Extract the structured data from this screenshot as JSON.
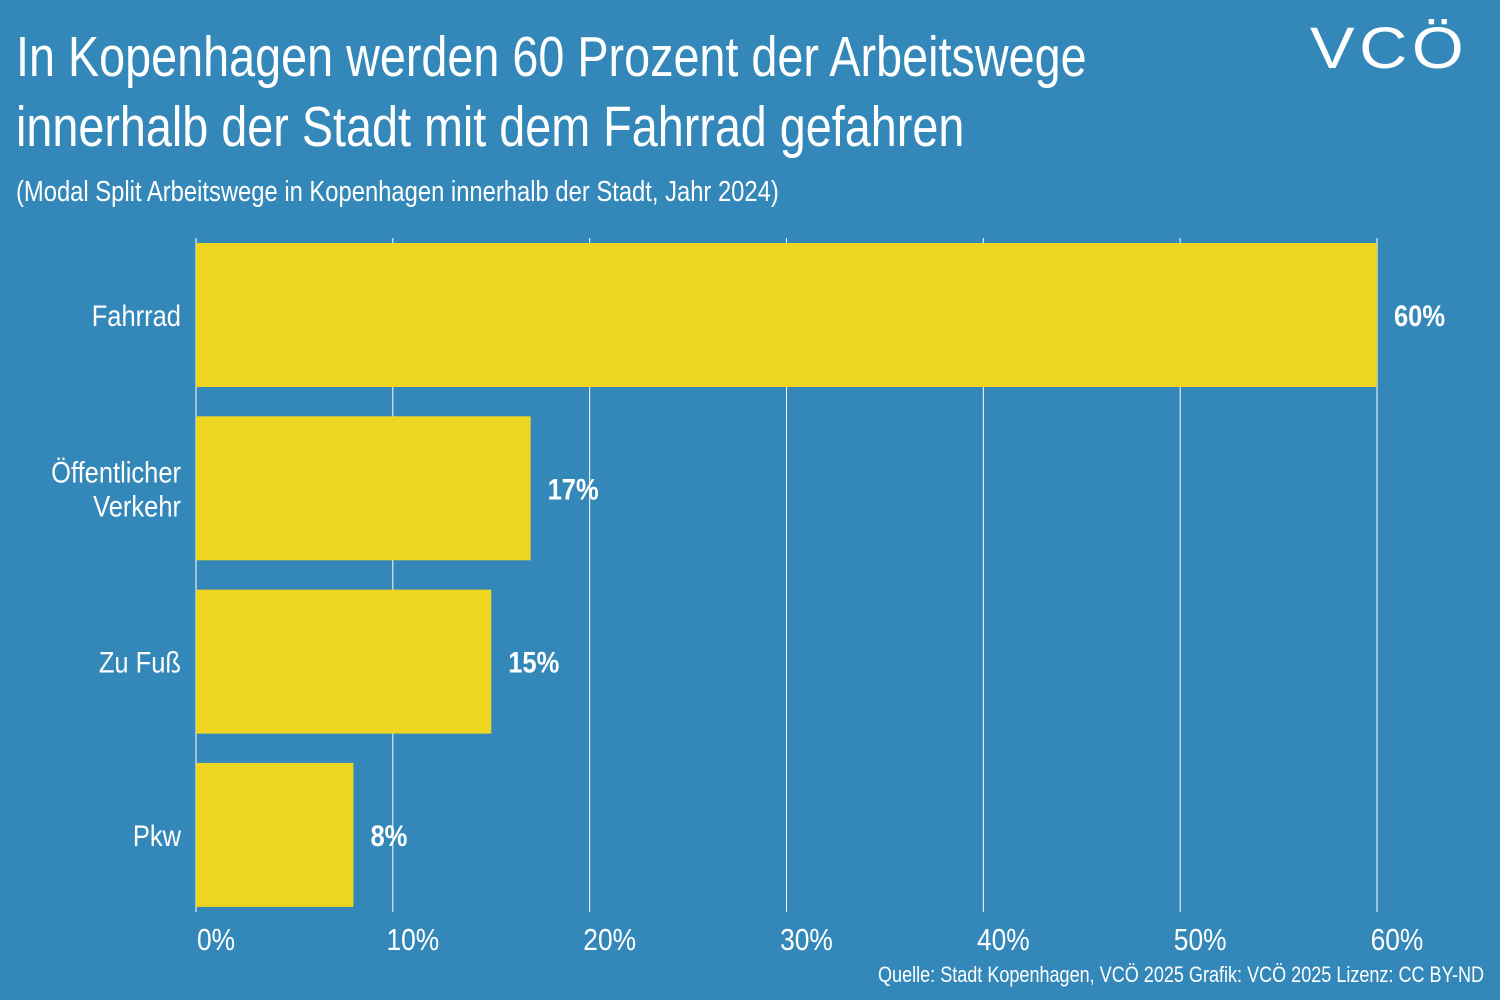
{
  "title_line1": "In Kopenhagen werden 60 Prozent der Arbeitswege",
  "title_line2": "innerhalb der Stadt mit dem Fahrrad gefahren",
  "subtitle": "(Modal Split Arbeitswege in Kopenhagen innerhalb der Stadt, Jahr 2024)",
  "logo_text": "VCÖ",
  "source": "Quelle: Stadt Kopenhagen, VCÖ 2025 Grafik: VCÖ 2025 Lizenz: CC BY-ND",
  "colors": {
    "background": "#3388b9",
    "bar": "#eed521",
    "text": "#ffffff"
  },
  "chart_data": {
    "type": "bar",
    "orientation": "horizontal",
    "categories": [
      [
        "Fahrrad"
      ],
      [
        "Öffentlicher",
        "Verkehr"
      ],
      [
        "Zu Fuß"
      ],
      [
        "Pkw"
      ]
    ],
    "values": [
      60,
      17,
      15,
      8
    ],
    "data_labels": [
      "60%",
      "17%",
      "15%",
      "8%"
    ],
    "xlim": [
      0,
      60
    ],
    "xticks": [
      0,
      10,
      20,
      30,
      40,
      50,
      60
    ],
    "xtick_labels": [
      "0%",
      "10%",
      "20%",
      "30%",
      "40%",
      "50%",
      "60%"
    ],
    "grid": "vertical",
    "title": "",
    "xlabel": "",
    "ylabel": ""
  }
}
